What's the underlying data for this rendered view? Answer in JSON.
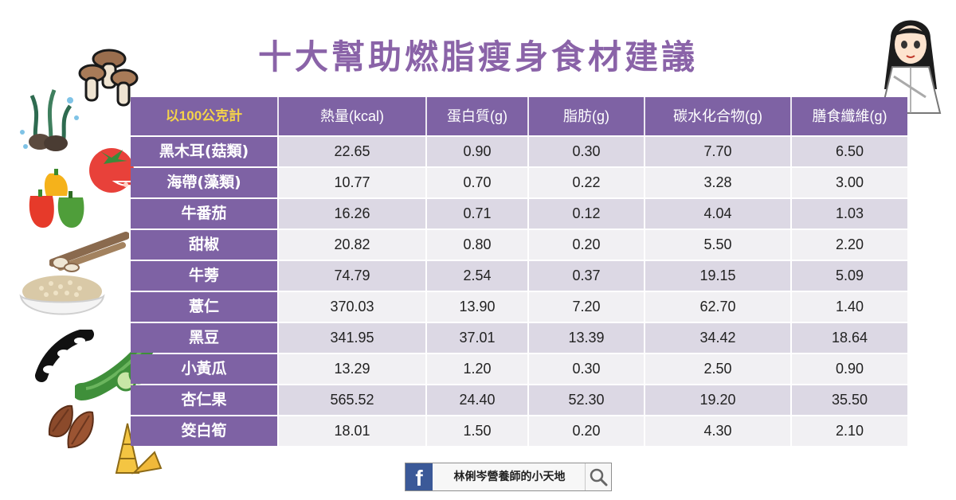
{
  "title": "十大幫助燃脂瘦身食材建議",
  "table": {
    "headers": [
      "以100公克計",
      "熱量(kcal)",
      "蛋白質(g)",
      "脂肪(g)",
      "碳水化合物(g)",
      "膳食纖維(g)"
    ],
    "rows": [
      {
        "name": "黑木耳(菇類)",
        "values": [
          "22.65",
          "0.90",
          "0.30",
          "7.70",
          "6.50"
        ]
      },
      {
        "name": "海帶(藻類)",
        "values": [
          "10.77",
          "0.70",
          "0.22",
          "3.28",
          "3.00"
        ]
      },
      {
        "name": "牛番茄",
        "values": [
          "16.26",
          "0.71",
          "0.12",
          "4.04",
          "1.03"
        ]
      },
      {
        "name": "甜椒",
        "values": [
          "20.82",
          "0.80",
          "0.20",
          "5.50",
          "2.20"
        ]
      },
      {
        "name": "牛蒡",
        "values": [
          "74.79",
          "2.54",
          "0.37",
          "19.15",
          "5.09"
        ]
      },
      {
        "name": "薏仁",
        "values": [
          "370.03",
          "13.90",
          "7.20",
          "62.70",
          "1.40"
        ]
      },
      {
        "name": "黑豆",
        "values": [
          "341.95",
          "37.01",
          "13.39",
          "34.42",
          "18.64"
        ]
      },
      {
        "name": "小黃瓜",
        "values": [
          "13.29",
          "1.20",
          "0.30",
          "2.50",
          "0.90"
        ]
      },
      {
        "name": "杏仁果",
        "values": [
          "565.52",
          "24.40",
          "52.30",
          "19.20",
          "35.50"
        ]
      },
      {
        "name": "筊白筍",
        "values": [
          "18.01",
          "1.50",
          "0.20",
          "4.30",
          "2.10"
        ]
      }
    ]
  },
  "footer": {
    "fb_letter": "f",
    "page_name": "林俐岑營養師的小天地"
  },
  "colors": {
    "accent": "#7e62a4",
    "header_highlight": "#f4d34a",
    "title": "#8a63a8",
    "row_dark": "#dcd8e4",
    "row_light": "#f1f0f3",
    "facebook": "#3b5998"
  },
  "icons": [
    "mushroom-icon",
    "seaweed-icon",
    "tomato-icon",
    "bell-pepper-icon",
    "burdock-root-icon",
    "barley-bowl-icon",
    "black-bean-icon",
    "cucumber-icon",
    "almond-icon",
    "bamboo-shoot-icon",
    "nutritionist-avatar",
    "facebook-icon",
    "search-icon"
  ]
}
